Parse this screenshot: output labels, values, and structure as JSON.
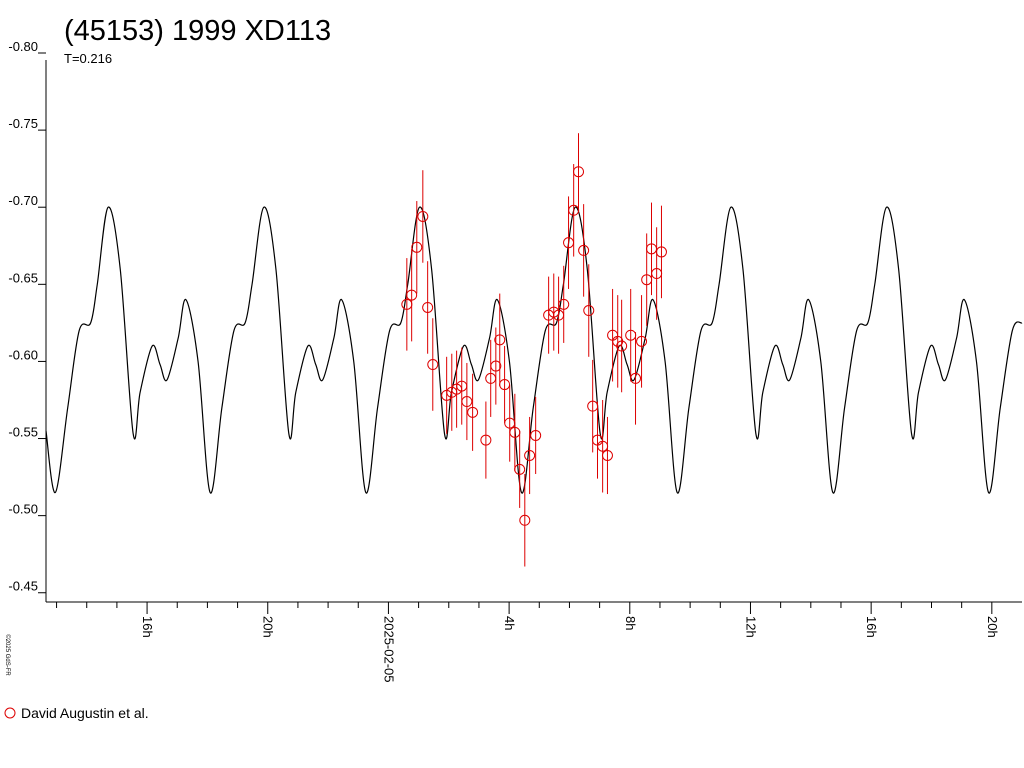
{
  "chart_data": {
    "type": "lightcurve",
    "title": "(45153) 1999 XD113",
    "subtitle": "T=0.216",
    "footnote": "©2025 GdS-FR",
    "xlim": [
      12.65,
      45.0
    ],
    "ylim": [
      -0.8,
      -0.444
    ],
    "yticks": [
      {
        "value": -0.8,
        "label": "-0.80"
      },
      -0.75,
      {
        "value": -0.7,
        "label": "-0.70"
      },
      -0.65,
      {
        "value": -0.6,
        "label": "-0.60"
      },
      -0.55,
      {
        "value": -0.5,
        "label": "-0.50"
      },
      -0.45
    ],
    "xticks": [
      {
        "value": 16,
        "label": "16h"
      },
      {
        "value": 20,
        "label": "20h"
      },
      {
        "value": 24,
        "label": "2025-02-05"
      },
      {
        "value": 28,
        "label": "4h"
      },
      {
        "value": 32,
        "label": "8h"
      },
      {
        "value": 36,
        "label": "12h"
      },
      {
        "value": 40,
        "label": "16h"
      },
      {
        "value": 44,
        "label": "20h"
      }
    ],
    "xminorticks": [
      13,
      14,
      15,
      17,
      18,
      19,
      21,
      22,
      23,
      25,
      26,
      27,
      29,
      30,
      31,
      33,
      34,
      35,
      37,
      38,
      39,
      41,
      42,
      43
    ],
    "model": {
      "color": "#000000",
      "x": [
        12.65,
        12.96,
        13.37,
        13.75,
        14.13,
        14.35,
        14.71,
        15.11,
        15.54,
        15.77,
        16.17,
        16.43,
        16.66,
        17.03,
        17.29,
        17.69,
        18.09,
        18.48,
        18.88,
        19.25,
        19.48,
        19.87,
        20.27,
        20.7,
        20.93,
        21.33,
        21.59,
        21.82,
        22.19,
        22.45,
        22.85,
        23.25,
        23.64,
        24.04,
        24.41,
        24.64,
        25.03,
        25.43,
        25.86,
        26.09,
        26.49,
        26.75,
        26.98,
        27.35,
        27.61,
        28.01,
        28.41,
        28.8,
        29.2,
        29.57,
        29.8,
        30.19,
        30.59,
        31.02,
        31.25,
        31.65,
        31.91,
        32.14,
        32.51,
        32.77,
        33.17,
        33.57,
        33.96,
        34.36,
        34.73,
        34.96,
        35.35,
        35.75,
        36.18,
        36.41,
        36.81,
        37.07,
        37.3,
        37.67,
        37.93,
        38.33,
        38.73,
        39.12,
        39.52,
        39.89,
        40.12,
        40.51,
        40.91,
        41.34,
        41.57,
        41.97,
        42.23,
        42.46,
        42.83,
        43.09,
        43.49,
        43.89,
        44.28,
        44.68,
        45.0
      ],
      "values": [
        -0.555,
        -0.515,
        -0.57,
        -0.62,
        -0.625,
        -0.65,
        -0.7,
        -0.66,
        -0.553,
        -0.58,
        -0.61,
        -0.598,
        -0.588,
        -0.615,
        -0.64,
        -0.6,
        -0.515,
        -0.57,
        -0.62,
        -0.625,
        -0.65,
        -0.7,
        -0.66,
        -0.553,
        -0.58,
        -0.61,
        -0.598,
        -0.588,
        -0.615,
        -0.64,
        -0.6,
        -0.515,
        -0.57,
        -0.62,
        -0.625,
        -0.65,
        -0.7,
        -0.66,
        -0.553,
        -0.58,
        -0.61,
        -0.598,
        -0.588,
        -0.615,
        -0.64,
        -0.6,
        -0.515,
        -0.57,
        -0.62,
        -0.625,
        -0.65,
        -0.7,
        -0.66,
        -0.553,
        -0.58,
        -0.61,
        -0.598,
        -0.588,
        -0.615,
        -0.64,
        -0.6,
        -0.515,
        -0.57,
        -0.62,
        -0.625,
        -0.65,
        -0.7,
        -0.66,
        -0.553,
        -0.58,
        -0.61,
        -0.598,
        -0.588,
        -0.615,
        -0.64,
        -0.6,
        -0.515,
        -0.57,
        -0.62,
        -0.625,
        -0.65,
        -0.7,
        -0.66,
        -0.553,
        -0.58,
        -0.61,
        -0.598,
        -0.588,
        -0.615,
        -0.64,
        -0.6,
        -0.515,
        -0.57,
        -0.62,
        -0.625
      ]
    },
    "series": [
      {
        "name": "David Augustin et al.",
        "color": "#dd0000",
        "x": [
          24.61,
          24.77,
          24.94,
          25.14,
          25.3,
          25.47,
          25.93,
          26.1,
          26.26,
          26.43,
          26.6,
          26.79,
          27.23,
          27.39,
          27.56,
          27.69,
          27.85,
          28.02,
          28.19,
          28.35,
          28.52,
          28.68,
          28.88,
          29.31,
          29.48,
          29.64,
          29.81,
          29.97,
          30.14,
          30.3,
          30.47,
          30.64,
          30.77,
          30.93,
          31.1,
          31.26,
          31.43,
          31.6,
          31.73,
          32.03,
          32.19,
          32.39,
          32.56,
          32.72,
          32.89,
          33.05
        ],
        "values": [
          -0.637,
          -0.643,
          -0.674,
          -0.694,
          -0.635,
          -0.598,
          -0.578,
          -0.58,
          -0.582,
          -0.584,
          -0.574,
          -0.567,
          -0.549,
          -0.589,
          -0.597,
          -0.614,
          -0.585,
          -0.56,
          -0.554,
          -0.53,
          -0.497,
          -0.539,
          -0.552,
          -0.63,
          -0.632,
          -0.63,
          -0.637,
          -0.677,
          -0.698,
          -0.723,
          -0.672,
          -0.633,
          -0.571,
          -0.549,
          -0.545,
          -0.539,
          -0.617,
          -0.613,
          -0.61,
          -0.617,
          -0.589,
          -0.613,
          -0.653,
          -0.673,
          -0.657,
          -0.671
        ],
        "errors": [
          0.03,
          0.03,
          0.03,
          0.03,
          0.03,
          0.03,
          0.025,
          0.025,
          0.025,
          0.025,
          0.025,
          0.025,
          0.025,
          0.025,
          0.025,
          0.03,
          0.025,
          0.025,
          0.025,
          0.025,
          0.03,
          0.025,
          0.025,
          0.025,
          0.025,
          0.025,
          0.025,
          0.03,
          0.03,
          0.025,
          0.03,
          0.03,
          0.03,
          0.025,
          0.03,
          0.025,
          0.03,
          0.03,
          0.03,
          0.03,
          0.03,
          0.03,
          0.03,
          0.03,
          0.03,
          0.03
        ]
      }
    ]
  }
}
